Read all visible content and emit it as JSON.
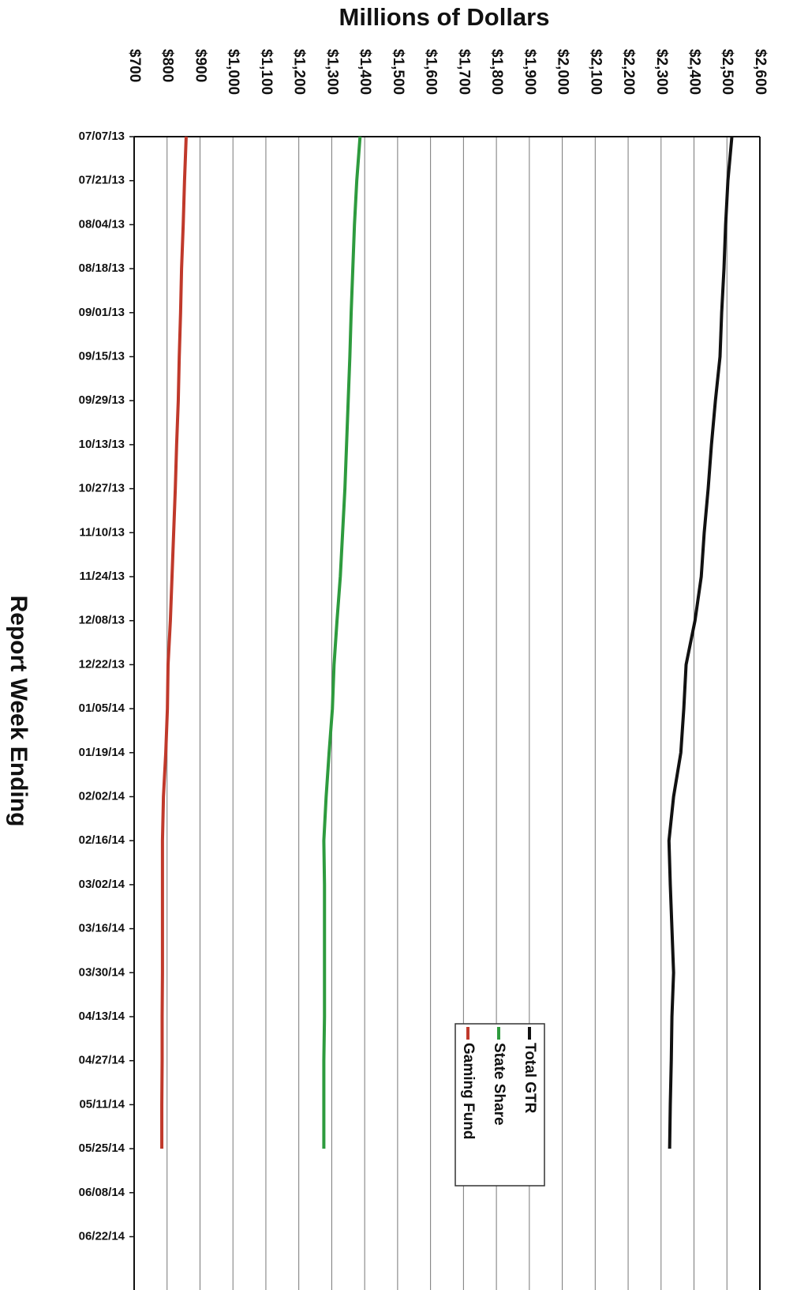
{
  "chart_data": {
    "type": "line",
    "title": "Millions of Dollars",
    "y_label": "Report Week Ending",
    "categories": [
      "07/07/13",
      "07/21/13",
      "08/04/13",
      "08/18/13",
      "09/01/13",
      "09/15/13",
      "09/29/13",
      "10/13/13",
      "10/27/13",
      "11/10/13",
      "11/24/13",
      "12/08/13",
      "12/22/13",
      "01/05/14",
      "01/19/14",
      "02/02/14",
      "02/16/14",
      "03/02/14",
      "03/16/14",
      "03/30/14",
      "04/13/14",
      "04/27/14",
      "05/11/14",
      "05/25/14",
      "06/08/14",
      "06/22/14"
    ],
    "series": [
      {
        "name": "Total GTR",
        "color": "#111111",
        "values": [
          2515,
          2503,
          2496,
          2491,
          2484,
          2479,
          2465,
          2453,
          2443,
          2431,
          2422,
          2403,
          2376,
          2369,
          2360,
          2338,
          2324,
          2328,
          2333,
          2338,
          2333,
          2331,
          2328,
          2326,
          null,
          null
        ]
      },
      {
        "name": "State Share",
        "color": "#2e9b3e",
        "values": [
          1386,
          1376,
          1369,
          1364,
          1359,
          1355,
          1350,
          1345,
          1340,
          1333,
          1326,
          1316,
          1307,
          1302,
          1292,
          1283,
          1276,
          1278,
          1278,
          1278,
          1278,
          1276,
          1276,
          1276,
          null,
          null
        ]
      },
      {
        "name": "Gaming Fund",
        "color": "#c0392b",
        "values": [
          858,
          853,
          849,
          844,
          841,
          837,
          834,
          829,
          825,
          820,
          815,
          810,
          803,
          801,
          796,
          789,
          786,
          786,
          786,
          786,
          785,
          785,
          784,
          784,
          null,
          null
        ]
      }
    ],
    "xlim": [
      700,
      2600
    ],
    "xticks": [
      {
        "value": 700,
        "label": "$700"
      },
      {
        "value": 800,
        "label": "$800"
      },
      {
        "value": 900,
        "label": "$900"
      },
      {
        "value": 1000,
        "label": "$1,000"
      },
      {
        "value": 1100,
        "label": "$1,100"
      },
      {
        "value": 1200,
        "label": "$1,200"
      },
      {
        "value": 1300,
        "label": "$1,300"
      },
      {
        "value": 1400,
        "label": "$1,400"
      },
      {
        "value": 1500,
        "label": "$1,500"
      },
      {
        "value": 1600,
        "label": "$1,600"
      },
      {
        "value": 1700,
        "label": "$1,700"
      },
      {
        "value": 1800,
        "label": "$1,800"
      },
      {
        "value": 1900,
        "label": "$1,900"
      },
      {
        "value": 2000,
        "label": "$2,000"
      },
      {
        "value": 2100,
        "label": "$2,100"
      },
      {
        "value": 2200,
        "label": "$2,200"
      },
      {
        "value": 2300,
        "label": "$2,300"
      },
      {
        "value": 2400,
        "label": "$2,400"
      },
      {
        "value": 2500,
        "label": "$2,500"
      },
      {
        "value": 2600,
        "label": "$2,600"
      }
    ],
    "grid": true
  }
}
